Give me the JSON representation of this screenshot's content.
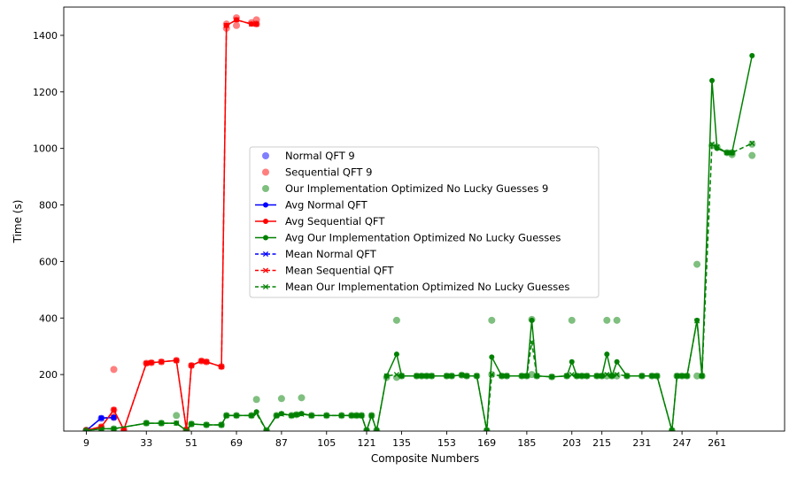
{
  "chart_data": {
    "type": "line",
    "xlabel": "Composite Numbers",
    "ylabel": "Time (s)",
    "xlim": [
      0,
      288
    ],
    "ylim": [
      0,
      1500
    ],
    "x_ticks": [
      9,
      33,
      51,
      69,
      87,
      105,
      121,
      135,
      153,
      169,
      185,
      203,
      215,
      231,
      247,
      261
    ],
    "y_ticks": [
      200,
      400,
      600,
      800,
      1000,
      1200,
      1400
    ],
    "legend_position": "center",
    "colors": {
      "normal": "#0000ff",
      "sequential": "#ff0000",
      "optimized": "#008000"
    },
    "scatter_series": [
      {
        "name": "Normal QFT 9",
        "color": "#0000ff",
        "points": [
          [
            9,
            2
          ],
          [
            15,
            45
          ],
          [
            20,
            48
          ]
        ]
      },
      {
        "name": "Sequential QFT 9",
        "color": "#ff0000",
        "points": [
          [
            9,
            3
          ],
          [
            15,
            15
          ],
          [
            20,
            218
          ],
          [
            20,
            75
          ],
          [
            20,
            50
          ],
          [
            24,
            5
          ],
          [
            33,
            240
          ],
          [
            35,
            242
          ],
          [
            39,
            245
          ],
          [
            45,
            250
          ],
          [
            49,
            5
          ],
          [
            51,
            232
          ],
          [
            55,
            248
          ],
          [
            57,
            245
          ],
          [
            63,
            228
          ],
          [
            65,
            1440
          ],
          [
            65,
            1425
          ],
          [
            69,
            1462
          ],
          [
            69,
            1435
          ],
          [
            75,
            1445
          ],
          [
            77,
            1440
          ],
          [
            77,
            1455
          ]
        ]
      },
      {
        "name": "Our Implementation Optimized No Lucky Guesses 9",
        "color": "#008000",
        "points": [
          [
            9,
            2
          ],
          [
            15,
            8
          ],
          [
            20,
            8
          ],
          [
            33,
            28
          ],
          [
            39,
            28
          ],
          [
            45,
            55
          ],
          [
            49,
            2
          ],
          [
            51,
            25
          ],
          [
            57,
            22
          ],
          [
            63,
            22
          ],
          [
            65,
            55
          ],
          [
            69,
            55
          ],
          [
            75,
            55
          ],
          [
            77,
            112
          ],
          [
            81,
            2
          ],
          [
            85,
            55
          ],
          [
            87,
            115
          ],
          [
            91,
            55
          ],
          [
            93,
            58
          ],
          [
            95,
            118
          ],
          [
            99,
            55
          ],
          [
            105,
            55
          ],
          [
            111,
            55
          ],
          [
            115,
            55
          ],
          [
            117,
            55
          ],
          [
            119,
            55
          ],
          [
            121,
            2
          ],
          [
            123,
            55
          ],
          [
            125,
            2
          ],
          [
            129,
            190
          ],
          [
            133,
            190
          ],
          [
            133,
            392
          ],
          [
            135,
            195
          ],
          [
            141,
            195
          ],
          [
            143,
            195
          ],
          [
            145,
            195
          ],
          [
            147,
            195
          ],
          [
            153,
            195
          ],
          [
            155,
            195
          ],
          [
            159,
            198
          ],
          [
            161,
            195
          ],
          [
            165,
            195
          ],
          [
            169,
            2
          ],
          [
            171,
            392
          ],
          [
            171,
            200
          ],
          [
            175,
            195
          ],
          [
            177,
            195
          ],
          [
            183,
            195
          ],
          [
            185,
            195
          ],
          [
            187,
            395
          ],
          [
            187,
            200
          ],
          [
            189,
            195
          ],
          [
            195,
            192
          ],
          [
            201,
            195
          ],
          [
            203,
            392
          ],
          [
            205,
            195
          ],
          [
            207,
            195
          ],
          [
            209,
            195
          ],
          [
            213,
            195
          ],
          [
            215,
            195
          ],
          [
            217,
            392
          ],
          [
            217,
            195
          ],
          [
            219,
            195
          ],
          [
            221,
            392
          ],
          [
            221,
            195
          ],
          [
            225,
            195
          ],
          [
            231,
            195
          ],
          [
            235,
            195
          ],
          [
            237,
            195
          ],
          [
            243,
            2
          ],
          [
            245,
            195
          ],
          [
            247,
            195
          ],
          [
            249,
            195
          ],
          [
            253,
            590
          ],
          [
            253,
            195
          ],
          [
            255,
            195
          ],
          [
            259,
            1010
          ],
          [
            261,
            1005
          ],
          [
            265,
            985
          ],
          [
            267,
            985
          ],
          [
            267,
            978
          ],
          [
            275,
            975
          ],
          [
            275,
            1015
          ]
        ]
      }
    ],
    "series": [
      {
        "name": "Avg Normal QFT",
        "style": "solid",
        "marker": "circle",
        "color": "#0000ff",
        "x": [
          9,
          15,
          20
        ],
        "y": [
          2,
          46,
          48
        ]
      },
      {
        "name": "Avg Sequential QFT",
        "style": "solid",
        "marker": "circle",
        "color": "#ff0000",
        "x": [
          9,
          15,
          20,
          24,
          33,
          35,
          39,
          45,
          49,
          51,
          55,
          57,
          63,
          65,
          69,
          75,
          77
        ],
        "y": [
          3,
          15,
          75,
          5,
          240,
          242,
          245,
          250,
          5,
          232,
          248,
          245,
          228,
          1435,
          1455,
          1440,
          1440
        ]
      },
      {
        "name": "Avg Our Implementation Optimized No Lucky Guesses",
        "style": "solid",
        "marker": "circle",
        "color": "#008000",
        "x": [
          9,
          15,
          20,
          33,
          39,
          45,
          49,
          51,
          57,
          63,
          65,
          69,
          75,
          77,
          81,
          85,
          87,
          91,
          93,
          95,
          99,
          105,
          111,
          115,
          117,
          119,
          121,
          123,
          125,
          129,
          133,
          135,
          141,
          143,
          145,
          147,
          153,
          155,
          159,
          161,
          165,
          169,
          171,
          175,
          177,
          183,
          185,
          187,
          189,
          195,
          201,
          203,
          205,
          207,
          209,
          213,
          215,
          217,
          219,
          221,
          225,
          231,
          235,
          237,
          243,
          245,
          247,
          249,
          253,
          255,
          259,
          261,
          265,
          267,
          275
        ],
        "y": [
          2,
          8,
          8,
          28,
          28,
          28,
          2,
          25,
          22,
          22,
          55,
          55,
          55,
          68,
          2,
          55,
          62,
          55,
          58,
          62,
          55,
          55,
          55,
          55,
          55,
          55,
          2,
          55,
          2,
          195,
          272,
          195,
          195,
          195,
          195,
          195,
          195,
          195,
          198,
          195,
          195,
          2,
          262,
          195,
          195,
          195,
          195,
          392,
          195,
          192,
          195,
          245,
          195,
          195,
          195,
          195,
          195,
          272,
          195,
          245,
          195,
          195,
          195,
          195,
          2,
          195,
          195,
          195,
          392,
          195,
          1240,
          1000,
          985,
          985,
          1328
        ]
      },
      {
        "name": "Mean Normal QFT",
        "style": "dashed",
        "marker": "x",
        "color": "#0000ff",
        "x": [
          9,
          15,
          20
        ],
        "y": [
          2,
          46,
          48
        ]
      },
      {
        "name": "Mean Sequential QFT",
        "style": "dashed",
        "marker": "x",
        "color": "#ff0000",
        "x": [
          9,
          15,
          20,
          24,
          33,
          35,
          39,
          45,
          49,
          51,
          55,
          57,
          63,
          65,
          69,
          75,
          77
        ],
        "y": [
          3,
          15,
          75,
          5,
          240,
          242,
          245,
          250,
          5,
          232,
          248,
          245,
          228,
          1435,
          1455,
          1440,
          1440
        ]
      },
      {
        "name": "Mean Our Implementation Optimized No Lucky Guesses",
        "style": "dashed",
        "marker": "x",
        "color": "#008000",
        "x": [
          9,
          15,
          20,
          33,
          39,
          45,
          49,
          51,
          57,
          63,
          65,
          69,
          75,
          77,
          81,
          85,
          87,
          91,
          93,
          95,
          99,
          105,
          111,
          115,
          117,
          119,
          121,
          123,
          125,
          129,
          133,
          135,
          141,
          143,
          145,
          147,
          153,
          155,
          159,
          161,
          165,
          169,
          171,
          175,
          177,
          183,
          185,
          187,
          189,
          195,
          201,
          203,
          205,
          207,
          209,
          213,
          215,
          217,
          219,
          221,
          225,
          231,
          235,
          237,
          243,
          245,
          247,
          249,
          253,
          255,
          259,
          261,
          265,
          267,
          275
        ],
        "y": [
          2,
          8,
          8,
          28,
          28,
          28,
          2,
          25,
          22,
          22,
          55,
          55,
          55,
          62,
          2,
          55,
          60,
          55,
          58,
          60,
          55,
          55,
          55,
          55,
          55,
          55,
          2,
          55,
          2,
          195,
          200,
          195,
          195,
          195,
          195,
          195,
          195,
          195,
          198,
          195,
          195,
          2,
          200,
          195,
          195,
          195,
          195,
          315,
          195,
          192,
          195,
          200,
          195,
          195,
          195,
          195,
          195,
          200,
          195,
          200,
          195,
          195,
          195,
          195,
          2,
          195,
          195,
          195,
          390,
          195,
          1015,
          1005,
          985,
          985,
          1018
        ]
      }
    ],
    "legend": [
      {
        "label": "Normal QFT 9",
        "kind": "scatter",
        "color": "#0000ff"
      },
      {
        "label": "Sequential QFT 9",
        "kind": "scatter",
        "color": "#ff0000"
      },
      {
        "label": "Our Implementation Optimized No Lucky Guesses 9",
        "kind": "scatter",
        "color": "#008000"
      },
      {
        "label": "Avg Normal QFT",
        "kind": "line",
        "color": "#0000ff"
      },
      {
        "label": "Avg Sequential QFT",
        "kind": "line",
        "color": "#ff0000"
      },
      {
        "label": "Avg Our Implementation Optimized No Lucky Guesses",
        "kind": "line",
        "color": "#008000"
      },
      {
        "label": "Mean Normal QFT",
        "kind": "dashed",
        "color": "#0000ff"
      },
      {
        "label": "Mean Sequential QFT",
        "kind": "dashed",
        "color": "#ff0000"
      },
      {
        "label": "Mean Our Implementation Optimized No Lucky Guesses",
        "kind": "dashed",
        "color": "#008000"
      }
    ]
  }
}
